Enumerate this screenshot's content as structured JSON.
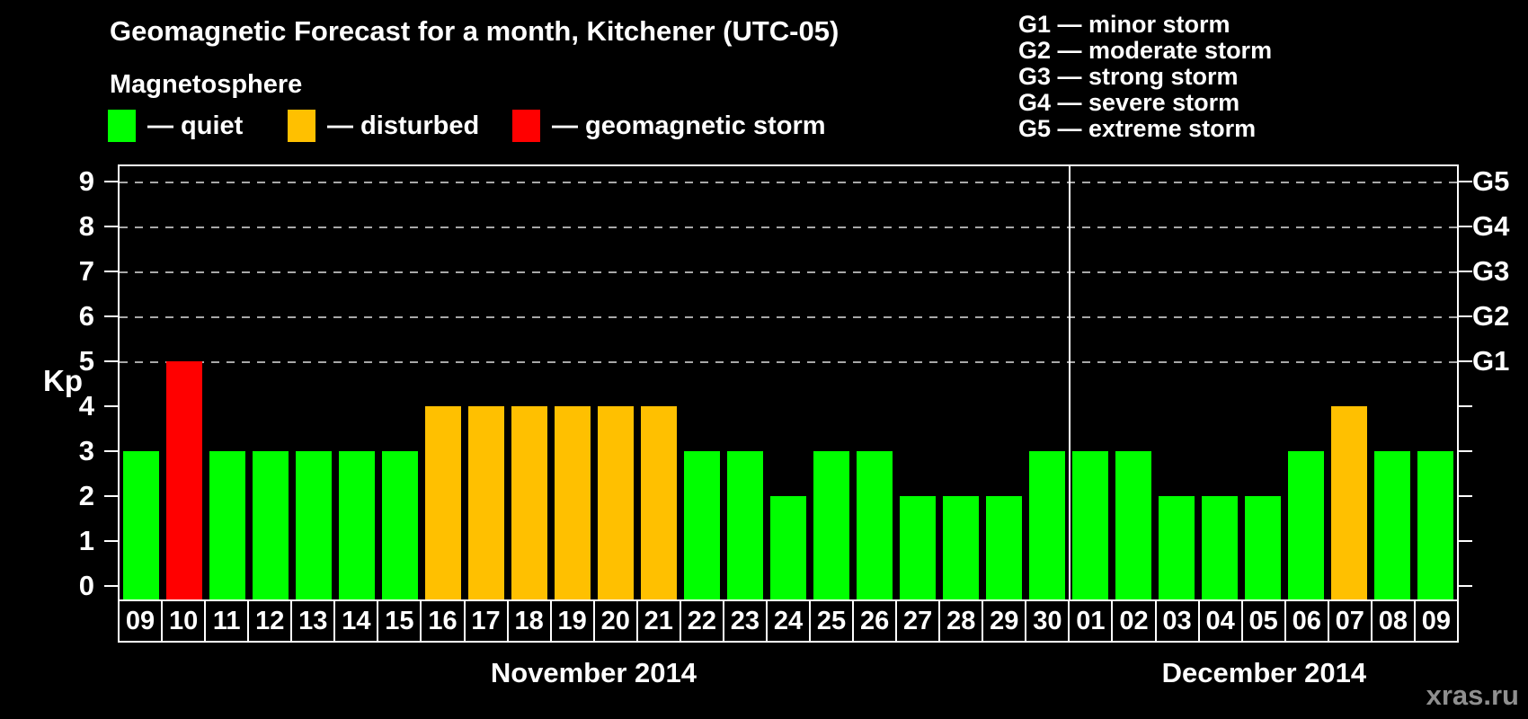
{
  "header": {
    "title": "Geomagnetic Forecast for a month, Kitchener (UTC-05)",
    "subtitle": "Magnetosphere"
  },
  "legend": {
    "items": [
      {
        "label": "— quiet",
        "status": "quiet",
        "color": "#00ff00"
      },
      {
        "label": "— disturbed",
        "status": "disturbed",
        "color": "#ffc000"
      },
      {
        "label": "— geomagnetic storm",
        "status": "storm",
        "color": "#ff0000"
      }
    ]
  },
  "g_legend": [
    "G1 — minor storm",
    "G2 — moderate storm",
    "G3 — strong storm",
    "G4 — severe storm",
    "G5 — extreme storm"
  ],
  "watermark": "xras.ru",
  "chart_data": {
    "type": "bar",
    "title": "Geomagnetic Forecast for a month, Kitchener (UTC-05)",
    "ylabel": "Kp",
    "ylim": [
      0,
      9
    ],
    "yticks": [
      0,
      1,
      2,
      3,
      4,
      5,
      6,
      7,
      8,
      9
    ],
    "grid": "dashed horizontal lines at storm levels only",
    "gridlines_at": [
      5,
      6,
      7,
      8,
      9
    ],
    "right_axis": [
      {
        "label": "G1",
        "kp": 5
      },
      {
        "label": "G2",
        "kp": 6
      },
      {
        "label": "G3",
        "kp": 7
      },
      {
        "label": "G4",
        "kp": 8
      },
      {
        "label": "G5",
        "kp": 9
      }
    ],
    "status_colors": {
      "quiet": "#00ff00",
      "disturbed": "#ffc000",
      "storm": "#ff0000"
    },
    "months": [
      {
        "label": "November 2014",
        "days": [
          {
            "day": "09",
            "kp": 3,
            "status": "quiet"
          },
          {
            "day": "10",
            "kp": 5,
            "status": "storm"
          },
          {
            "day": "11",
            "kp": 3,
            "status": "quiet"
          },
          {
            "day": "12",
            "kp": 3,
            "status": "quiet"
          },
          {
            "day": "13",
            "kp": 3,
            "status": "quiet"
          },
          {
            "day": "14",
            "kp": 3,
            "status": "quiet"
          },
          {
            "day": "15",
            "kp": 3,
            "status": "quiet"
          },
          {
            "day": "16",
            "kp": 4,
            "status": "disturbed"
          },
          {
            "day": "17",
            "kp": 4,
            "status": "disturbed"
          },
          {
            "day": "18",
            "kp": 4,
            "status": "disturbed"
          },
          {
            "day": "19",
            "kp": 4,
            "status": "disturbed"
          },
          {
            "day": "20",
            "kp": 4,
            "status": "disturbed"
          },
          {
            "day": "21",
            "kp": 4,
            "status": "disturbed"
          },
          {
            "day": "22",
            "kp": 3,
            "status": "quiet"
          },
          {
            "day": "23",
            "kp": 3,
            "status": "quiet"
          },
          {
            "day": "24",
            "kp": 2,
            "status": "quiet"
          },
          {
            "day": "25",
            "kp": 3,
            "status": "quiet"
          },
          {
            "day": "26",
            "kp": 3,
            "status": "quiet"
          },
          {
            "day": "27",
            "kp": 2,
            "status": "quiet"
          },
          {
            "day": "28",
            "kp": 2,
            "status": "quiet"
          },
          {
            "day": "29",
            "kp": 2,
            "status": "quiet"
          },
          {
            "day": "30",
            "kp": 3,
            "status": "quiet"
          }
        ]
      },
      {
        "label": "December 2014",
        "days": [
          {
            "day": "01",
            "kp": 3,
            "status": "quiet"
          },
          {
            "day": "02",
            "kp": 3,
            "status": "quiet"
          },
          {
            "day": "03",
            "kp": 2,
            "status": "quiet"
          },
          {
            "day": "04",
            "kp": 2,
            "status": "quiet"
          },
          {
            "day": "05",
            "kp": 2,
            "status": "quiet"
          },
          {
            "day": "06",
            "kp": 3,
            "status": "quiet"
          },
          {
            "day": "07",
            "kp": 4,
            "status": "disturbed"
          },
          {
            "day": "08",
            "kp": 3,
            "status": "quiet"
          },
          {
            "day": "09",
            "kp": 3,
            "status": "quiet"
          }
        ]
      }
    ]
  }
}
